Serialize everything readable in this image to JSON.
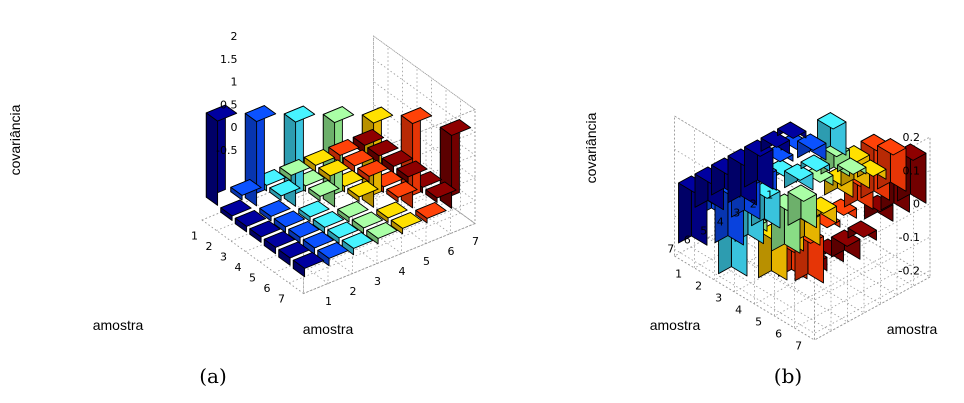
{
  "chart_data": [
    {
      "type": "bar3d",
      "panel_label": "(a)",
      "xlabel": "amostra",
      "ylabel": "amostra",
      "zlabel": "covariância",
      "x_ticks": [
        "1",
        "2",
        "3",
        "4",
        "5",
        "6",
        "7"
      ],
      "y_ticks": [
        "1",
        "2",
        "3",
        "4",
        "5",
        "6",
        "7"
      ],
      "z_ticks": [
        "-0.5",
        "0",
        "0.5",
        "1",
        "1.5",
        "2"
      ],
      "zlim": [
        -0.5,
        2
      ],
      "grid": true,
      "colormap": [
        "#00008f",
        "#0a49f5",
        "#3fd9f5",
        "#98f594",
        "#ffc800",
        "#ff3b07",
        "#7f0000"
      ],
      "matrix": [
        [
          1.85,
          -0.1,
          -0.12,
          -0.12,
          -0.14,
          -0.16,
          -0.18
        ],
        [
          -0.1,
          1.85,
          -0.1,
          -0.12,
          -0.12,
          -0.14,
          -0.16
        ],
        [
          -0.12,
          -0.1,
          1.85,
          -0.1,
          -0.12,
          -0.12,
          -0.14
        ],
        [
          -0.12,
          -0.12,
          -0.1,
          1.85,
          -0.1,
          -0.12,
          -0.12
        ],
        [
          -0.14,
          -0.12,
          -0.12,
          -0.1,
          1.85,
          -0.1,
          -0.12
        ],
        [
          -0.16,
          -0.14,
          -0.12,
          -0.12,
          -0.1,
          1.85,
          -0.1
        ],
        [
          -0.18,
          -0.16,
          -0.14,
          -0.12,
          -0.12,
          -0.1,
          1.6
        ]
      ]
    },
    {
      "type": "bar3d",
      "panel_label": "(b)",
      "xlabel": "amostra",
      "ylabel": "amostra",
      "zlabel": "covariância",
      "x_ticks": [
        "1",
        "2",
        "3",
        "4",
        "5",
        "6",
        "7"
      ],
      "y_ticks": [
        "1",
        "2",
        "3",
        "4",
        "5",
        "6",
        "7"
      ],
      "z_ticks": [
        "-0.2",
        "-0.1",
        "0",
        "0.1",
        "0.2"
      ],
      "zlim": [
        -0.22,
        0.2
      ],
      "grid": true,
      "colormap": [
        "#00008f",
        "#0a49f5",
        "#3fd9f5",
        "#98f594",
        "#ffc800",
        "#ff3b07",
        "#7f0000"
      ],
      "matrix": [
        [
          -0.02,
          -0.05,
          0.1,
          -0.02,
          0.03,
          0.13,
          0.15
        ],
        [
          -0.04,
          0.03,
          -0.02,
          0.08,
          0.1,
          0.17,
          0.12
        ],
        [
          -0.12,
          0.02,
          -0.05,
          0.03,
          0.06,
          0.09,
          0.05
        ],
        [
          -0.14,
          -0.06,
          0.04,
          -0.1,
          -0.05,
          0.03,
          -0.03
        ],
        [
          -0.09,
          -0.12,
          -0.11,
          -0.15,
          -0.09,
          0.02,
          -0.06
        ],
        [
          -0.1,
          -0.17,
          -0.13,
          0.03,
          -0.08,
          -0.14,
          -0.04
        ],
        [
          -0.18,
          -0.06,
          -0.2,
          -0.03,
          -0.14,
          -0.1,
          -0.04
        ]
      ]
    }
  ]
}
